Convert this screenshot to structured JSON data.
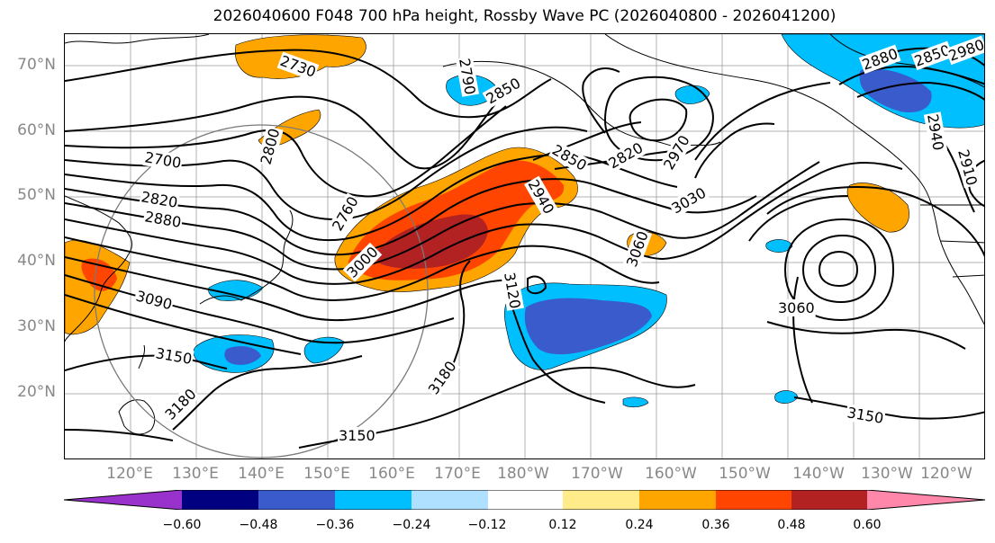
{
  "title": "2026040600 F048 700 hPa height, Rossby Wave PC (2026040800 - 2026041200)",
  "lat_labels": [
    "70°N",
    "60°N",
    "50°N",
    "40°N",
    "30°N",
    "20°N"
  ],
  "lon_labels": [
    "120°E",
    "130°E",
    "140°E",
    "150°E",
    "160°E",
    "170°E",
    "180°W",
    "170°W",
    "160°W",
    "150°W",
    "140°W",
    "130°W",
    "120°W"
  ],
  "contour_labels": [
    "2730",
    "2790",
    "2850",
    "2880",
    "2850",
    "2980",
    "2940",
    "2910",
    "2700",
    "2800",
    "2820",
    "2880",
    "2760",
    "2850",
    "2820",
    "2970",
    "2940",
    "3030",
    "3000",
    "3060",
    "3090",
    "3120",
    "3060",
    "3150",
    "3180",
    "3180",
    "3150",
    "3150"
  ],
  "colorbar": {
    "tick_labels": [
      "−0.60",
      "−0.48",
      "−0.36",
      "−0.24",
      "−0.12",
      "0.12",
      "0.24",
      "0.36",
      "0.48",
      "0.60"
    ],
    "colors": [
      "#9932cc",
      "#000080",
      "#3a5bcc",
      "#00bfff",
      "#b0e0ff",
      "#ffffff",
      "#ffeb8a",
      "#ffa500",
      "#ff4500",
      "#b22222",
      "#ff88aa"
    ]
  }
}
